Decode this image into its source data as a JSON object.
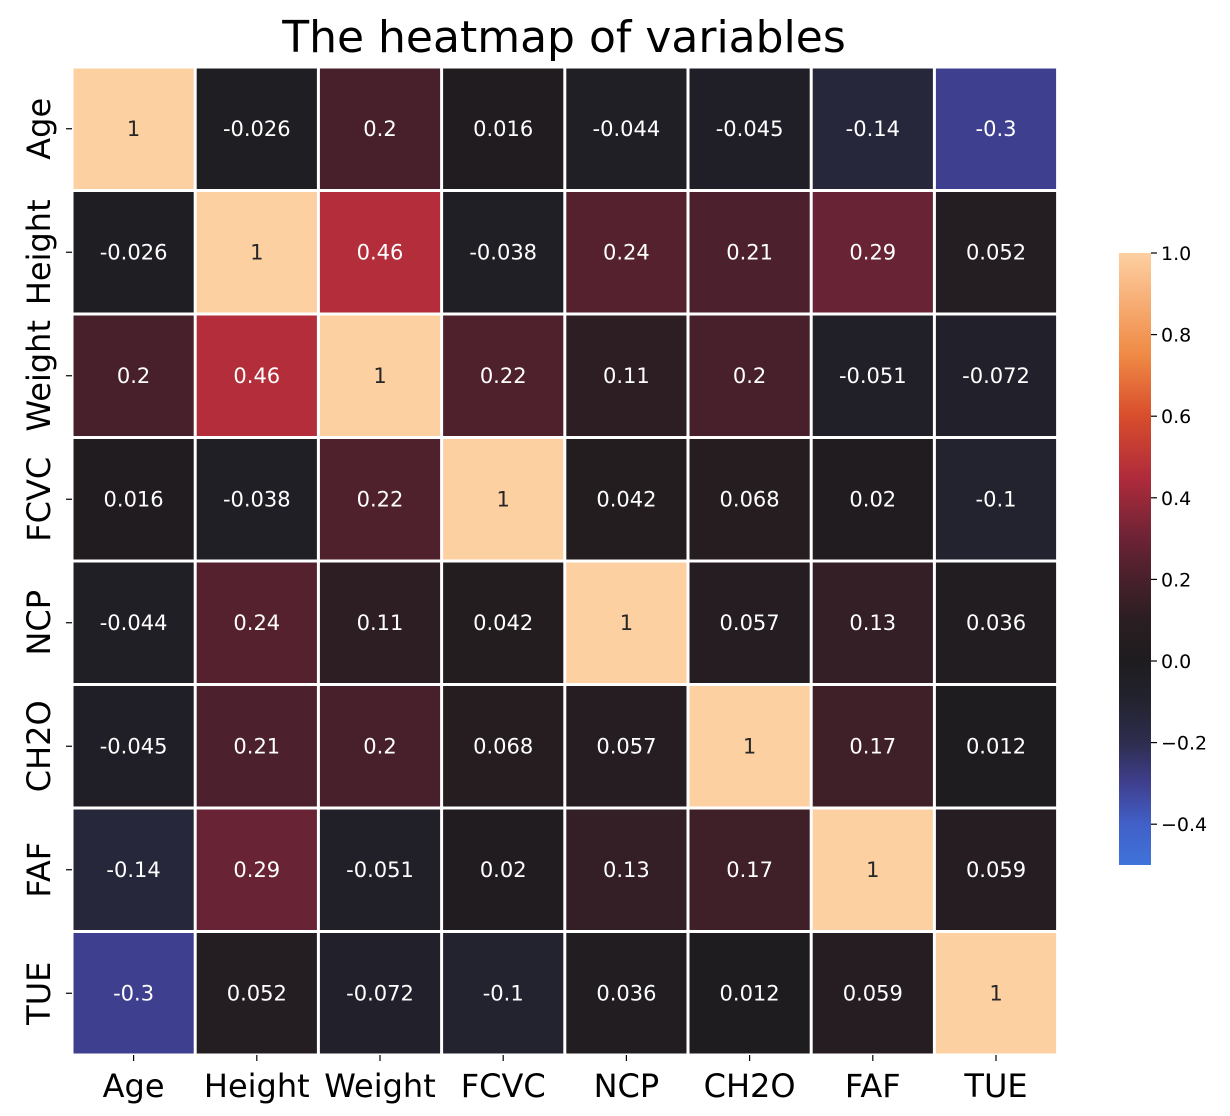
{
  "chart_data": {
    "type": "heatmap",
    "title": "The heatmap of variables",
    "x_categories": [
      "Age",
      "Height",
      "Weight",
      "FCVC",
      "NCP",
      "CH2O",
      "FAF",
      "TUE"
    ],
    "y_categories": [
      "Age",
      "Height",
      "Weight",
      "FCVC",
      "NCP",
      "CH2O",
      "FAF",
      "TUE"
    ],
    "values": [
      [
        1,
        -0.026,
        0.2,
        0.016,
        -0.044,
        -0.045,
        -0.14,
        -0.3
      ],
      [
        -0.026,
        1,
        0.46,
        -0.038,
        0.24,
        0.21,
        0.29,
        0.052
      ],
      [
        0.2,
        0.46,
        1,
        0.22,
        0.11,
        0.2,
        -0.051,
        -0.072
      ],
      [
        0.016,
        -0.038,
        0.22,
        1,
        0.042,
        0.068,
        0.02,
        -0.1
      ],
      [
        -0.044,
        0.24,
        0.11,
        0.042,
        1,
        0.057,
        0.13,
        0.036
      ],
      [
        -0.045,
        0.21,
        0.2,
        0.068,
        0.057,
        1,
        0.17,
        0.012
      ],
      [
        -0.14,
        0.29,
        -0.051,
        0.02,
        0.13,
        0.17,
        1,
        0.059
      ],
      [
        -0.3,
        0.052,
        -0.072,
        -0.1,
        0.036,
        0.012,
        0.059,
        1
      ]
    ],
    "annotations": [
      [
        "1",
        "-0.026",
        "0.2",
        "0.016",
        "-0.044",
        "-0.045",
        "-0.14",
        "-0.3"
      ],
      [
        "-0.026",
        "1",
        "0.46",
        "-0.038",
        "0.24",
        "0.21",
        "0.29",
        "0.052"
      ],
      [
        "0.2",
        "0.46",
        "1",
        "0.22",
        "0.11",
        "0.2",
        "-0.051",
        "-0.072"
      ],
      [
        "0.016",
        "-0.038",
        "0.22",
        "1",
        "0.042",
        "0.068",
        "0.02",
        "-0.1"
      ],
      [
        "-0.044",
        "0.24",
        "0.11",
        "0.042",
        "1",
        "0.057",
        "0.13",
        "0.036"
      ],
      [
        "-0.045",
        "0.21",
        "0.2",
        "0.068",
        "0.057",
        "1",
        "0.17",
        "0.012"
      ],
      [
        "-0.14",
        "0.29",
        "-0.051",
        "0.02",
        "0.13",
        "0.17",
        "1",
        "0.059"
      ],
      [
        "-0.3",
        "0.052",
        "-0.072",
        "-0.1",
        "0.036",
        "0.012",
        "0.059",
        "1"
      ]
    ],
    "colorscale": {
      "name": "icefire",
      "center": 0,
      "vmin": -0.5,
      "vmax": 1.0,
      "stops": [
        {
          "value": -0.5,
          "color": "#3f73d9"
        },
        {
          "value": -0.4,
          "color": "#4160c8"
        },
        {
          "value": -0.3,
          "color": "#3f3f8f"
        },
        {
          "value": -0.2,
          "color": "#2e2d4e"
        },
        {
          "value": -0.1,
          "color": "#232330"
        },
        {
          "value": 0.0,
          "color": "#1e1c1f"
        },
        {
          "value": 0.1,
          "color": "#2a1e22"
        },
        {
          "value": 0.2,
          "color": "#48202b"
        },
        {
          "value": 0.3,
          "color": "#6c2335"
        },
        {
          "value": 0.45,
          "color": "#b02b3b"
        },
        {
          "value": 0.6,
          "color": "#d84d2c"
        },
        {
          "value": 0.75,
          "color": "#ef8a45"
        },
        {
          "value": 0.9,
          "color": "#f8b37c"
        },
        {
          "value": 1.0,
          "color": "#fdd0a2"
        }
      ]
    },
    "colorbar": {
      "ticks": [
        1.0,
        0.8,
        0.6,
        0.4,
        0.2,
        0.0,
        -0.2,
        -0.4
      ],
      "tick_labels": [
        "1.0",
        "0.8",
        "0.6",
        "0.4",
        "0.2",
        "0.0",
        "−0.2",
        "−0.4"
      ]
    },
    "cell_separator_color": "#ffffff",
    "annotation_text_colors": {
      "dark_cell": "#ffffff",
      "light_cell": "#262626"
    }
  }
}
